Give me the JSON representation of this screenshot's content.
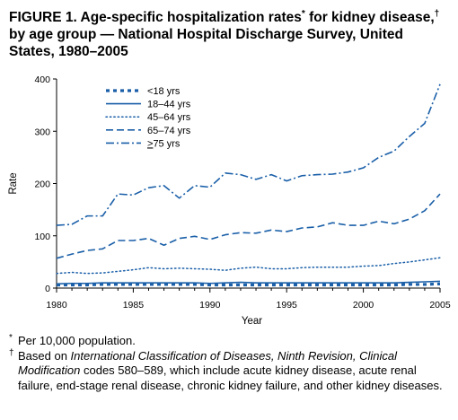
{
  "figure": {
    "title_text": "FIGURE 1. Age-specific hospitalization rates",
    "title_mark1": "*",
    "title_text2": " for kidney disease,",
    "title_mark2": "†",
    "title_text3": " by age group — National Hospital Discharge Survey, United States, 1980–2005"
  },
  "footnotes": [
    {
      "mark": "*",
      "text": "Per 10,000 population."
    },
    {
      "mark": "†",
      "text_pre": "Based on ",
      "text_italic": "International Classification of Diseases, Ninth Revision, Clinical Modification",
      "text_post": " codes 580–589, which include acute kidney disease, acute renal failure, end-stage renal disease, chronic kidney failure, and other kidney diseases."
    }
  ],
  "chart_data": {
    "type": "line",
    "title": "FIGURE 1. Age-specific hospitalization rates* for kidney disease,† by age group — National Hospital Discharge Survey, United States, 1980–2005",
    "xlabel": "Year",
    "ylabel": "Rate",
    "xlim": [
      1980,
      2005
    ],
    "ylim": [
      0,
      400
    ],
    "xticks": [
      1980,
      1985,
      1990,
      1995,
      2000,
      2005
    ],
    "yticks": [
      0,
      100,
      200,
      300,
      400
    ],
    "grid": false,
    "legend_position": "top-left",
    "x": [
      1980,
      1981,
      1982,
      1983,
      1984,
      1985,
      1986,
      1987,
      1988,
      1989,
      1990,
      1991,
      1992,
      1993,
      1994,
      1995,
      1996,
      1997,
      1998,
      1999,
      2000,
      2001,
      2002,
      2003,
      2004,
      2005
    ],
    "series": [
      {
        "name": "<18 yrs",
        "label_prefix": "<",
        "label_rest": "18 yrs",
        "underline_prefix": false,
        "style": "dotted-heavy",
        "color": "#1a5fa8",
        "values": [
          6,
          6,
          6,
          7,
          7,
          7,
          7,
          7,
          7,
          7,
          6,
          6,
          6,
          6,
          6,
          6,
          6,
          6,
          6,
          6,
          6,
          6,
          6,
          7,
          7,
          8
        ]
      },
      {
        "name": "18–44 yrs",
        "label_prefix": "",
        "label_rest": "18–44 yrs",
        "underline_prefix": false,
        "style": "solid",
        "color": "#1a5fa8",
        "values": [
          8,
          9,
          9,
          10,
          10,
          10,
          10,
          10,
          10,
          10,
          9,
          10,
          11,
          10,
          10,
          10,
          10,
          10,
          10,
          10,
          10,
          10,
          10,
          11,
          12,
          13
        ]
      },
      {
        "name": "45–64 yrs",
        "label_prefix": "",
        "label_rest": "45–64 yrs",
        "underline_prefix": false,
        "style": "dotted",
        "color": "#1a5fa8",
        "values": [
          28,
          30,
          28,
          29,
          32,
          35,
          39,
          37,
          38,
          37,
          36,
          34,
          38,
          40,
          37,
          37,
          39,
          40,
          40,
          40,
          42,
          43,
          47,
          50,
          54,
          58
        ]
      },
      {
        "name": "65–74 yrs",
        "label_prefix": "",
        "label_rest": "65–74 yrs",
        "underline_prefix": false,
        "style": "dashed",
        "color": "#1a5fa8",
        "values": [
          57,
          65,
          72,
          75,
          91,
          91,
          95,
          82,
          95,
          99,
          93,
          102,
          106,
          105,
          111,
          108,
          115,
          117,
          125,
          120,
          120,
          128,
          123,
          132,
          148,
          180
        ]
      },
      {
        "name": "≥75 yrs",
        "label_prefix": ">",
        "label_rest": "75 yrs",
        "underline_prefix": true,
        "style": "dash-dot",
        "color": "#1a5fa8",
        "values": [
          120,
          122,
          138,
          138,
          180,
          178,
          192,
          196,
          172,
          196,
          193,
          220,
          217,
          208,
          217,
          205,
          215,
          217,
          218,
          222,
          230,
          250,
          262,
          290,
          315,
          390
        ]
      }
    ]
  }
}
